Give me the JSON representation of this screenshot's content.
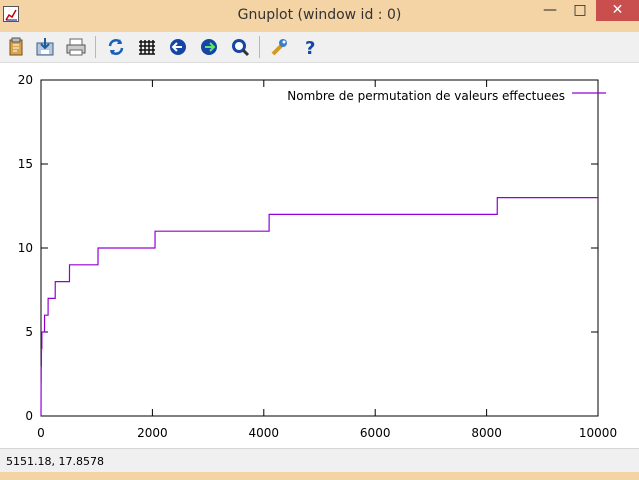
{
  "window": {
    "title": "Gnuplot (window id : 0)"
  },
  "title_buttons": {
    "minimize": "—",
    "maximize": "□",
    "close": "✕"
  },
  "toolbar": {
    "buttons": [
      {
        "name": "clipboard-icon"
      },
      {
        "name": "save-icon"
      },
      {
        "name": "print-icon"
      },
      {
        "name": "replot-icon"
      },
      {
        "name": "grid-icon"
      },
      {
        "name": "previous-zoom-icon"
      },
      {
        "name": "next-zoom-icon"
      },
      {
        "name": "autoscale-icon"
      },
      {
        "name": "options-icon"
      },
      {
        "name": "help-icon"
      }
    ]
  },
  "chart_data": {
    "type": "line",
    "xlim": [
      0,
      10000
    ],
    "ylim": [
      0,
      20
    ],
    "x_ticks": [
      "0",
      "2000",
      "4000",
      "6000",
      "8000",
      "10000"
    ],
    "y_ticks": [
      "0",
      "5",
      "10",
      "15",
      "20"
    ],
    "legend_placement": "top-right",
    "grid": false,
    "series": [
      {
        "name": "Nombre de permutation de valeurs effectuees",
        "color": "#9400d3",
        "points": [
          [
            0,
            0
          ],
          [
            1,
            1
          ],
          [
            2,
            2
          ],
          [
            3,
            2
          ],
          [
            4,
            3
          ],
          [
            7,
            3
          ],
          [
            8,
            4
          ],
          [
            15,
            4
          ],
          [
            16,
            5
          ],
          [
            31,
            5
          ],
          [
            32,
            5
          ],
          [
            63,
            5
          ],
          [
            64,
            6
          ],
          [
            127,
            6
          ],
          [
            128,
            7
          ],
          [
            255,
            7
          ],
          [
            256,
            8
          ],
          [
            511,
            8
          ],
          [
            512,
            9
          ],
          [
            1023,
            9
          ],
          [
            1024,
            10
          ],
          [
            2047,
            10
          ],
          [
            2048,
            11
          ],
          [
            4095,
            11
          ],
          [
            4096,
            12
          ],
          [
            8191,
            12
          ],
          [
            8192,
            13
          ],
          [
            10000,
            13
          ]
        ]
      }
    ]
  },
  "status": {
    "coordinates": "5151.18,  17.8578"
  },
  "colors": {
    "frame": "#f4d3a5",
    "plot_line": "#9400d3",
    "close": "#c94f4f"
  }
}
